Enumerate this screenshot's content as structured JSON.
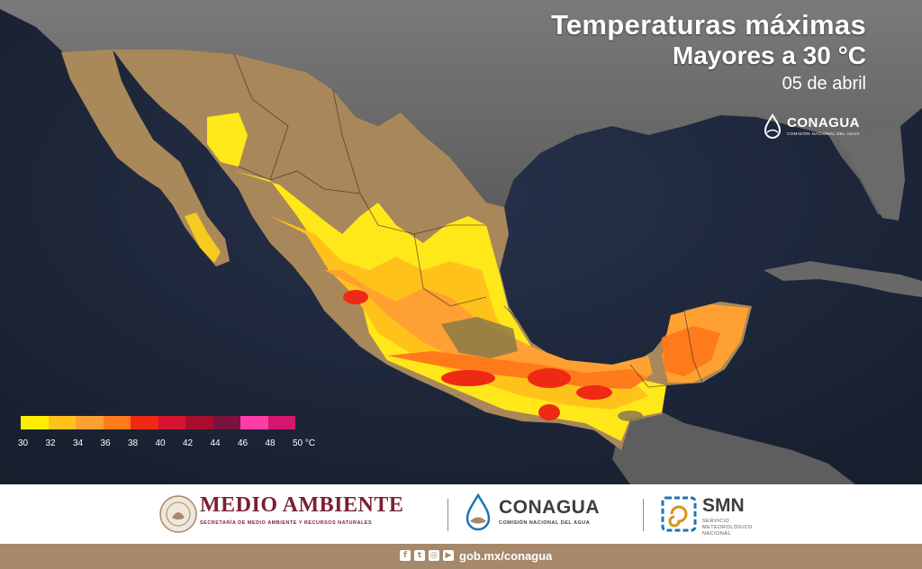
{
  "header": {
    "title": "Temperaturas máximas",
    "subtitle": "Mayores a 30 °C",
    "date": "05 de abril"
  },
  "map_logo": {
    "name": "CONAGUA",
    "sub": "COMISIÓN NACIONAL DEL AGUA"
  },
  "legend": {
    "colors": [
      "#ffee00",
      "#ffc21a",
      "#ffa033",
      "#ff7a1a",
      "#ee2a14",
      "#d41430",
      "#a80d2e",
      "#7a1240",
      "#ff3da8",
      "#d6166e"
    ],
    "ticks": [
      "30",
      "32",
      "34",
      "36",
      "38",
      "40",
      "42",
      "44",
      "46",
      "48",
      "50 °C"
    ]
  },
  "footer": {
    "medio_ambiente": {
      "title": "MEDIO AMBIENTE",
      "subtitle": "SECRETARÍA DE MEDIO AMBIENTE Y RECURSOS NATURALES"
    },
    "conagua": {
      "title": "CONAGUA",
      "subtitle": "COMISIÓN NACIONAL DEL AGUA"
    },
    "smn": {
      "title": "SMN",
      "subtitle": "SERVICIO METEOROLÓGICO NACIONAL"
    }
  },
  "bottom_bar": {
    "social_icons": [
      "facebook-icon",
      "twitter-icon",
      "instagram-icon",
      "youtube-icon"
    ],
    "url": "gob.mx/conagua"
  },
  "colors": {
    "ocean": "#1b2433",
    "land_usa": "#6b6b6b",
    "land_mexico": "#a8875a",
    "footer_maroon": "#7a1f33",
    "bottom_bar": "#a6886a"
  }
}
